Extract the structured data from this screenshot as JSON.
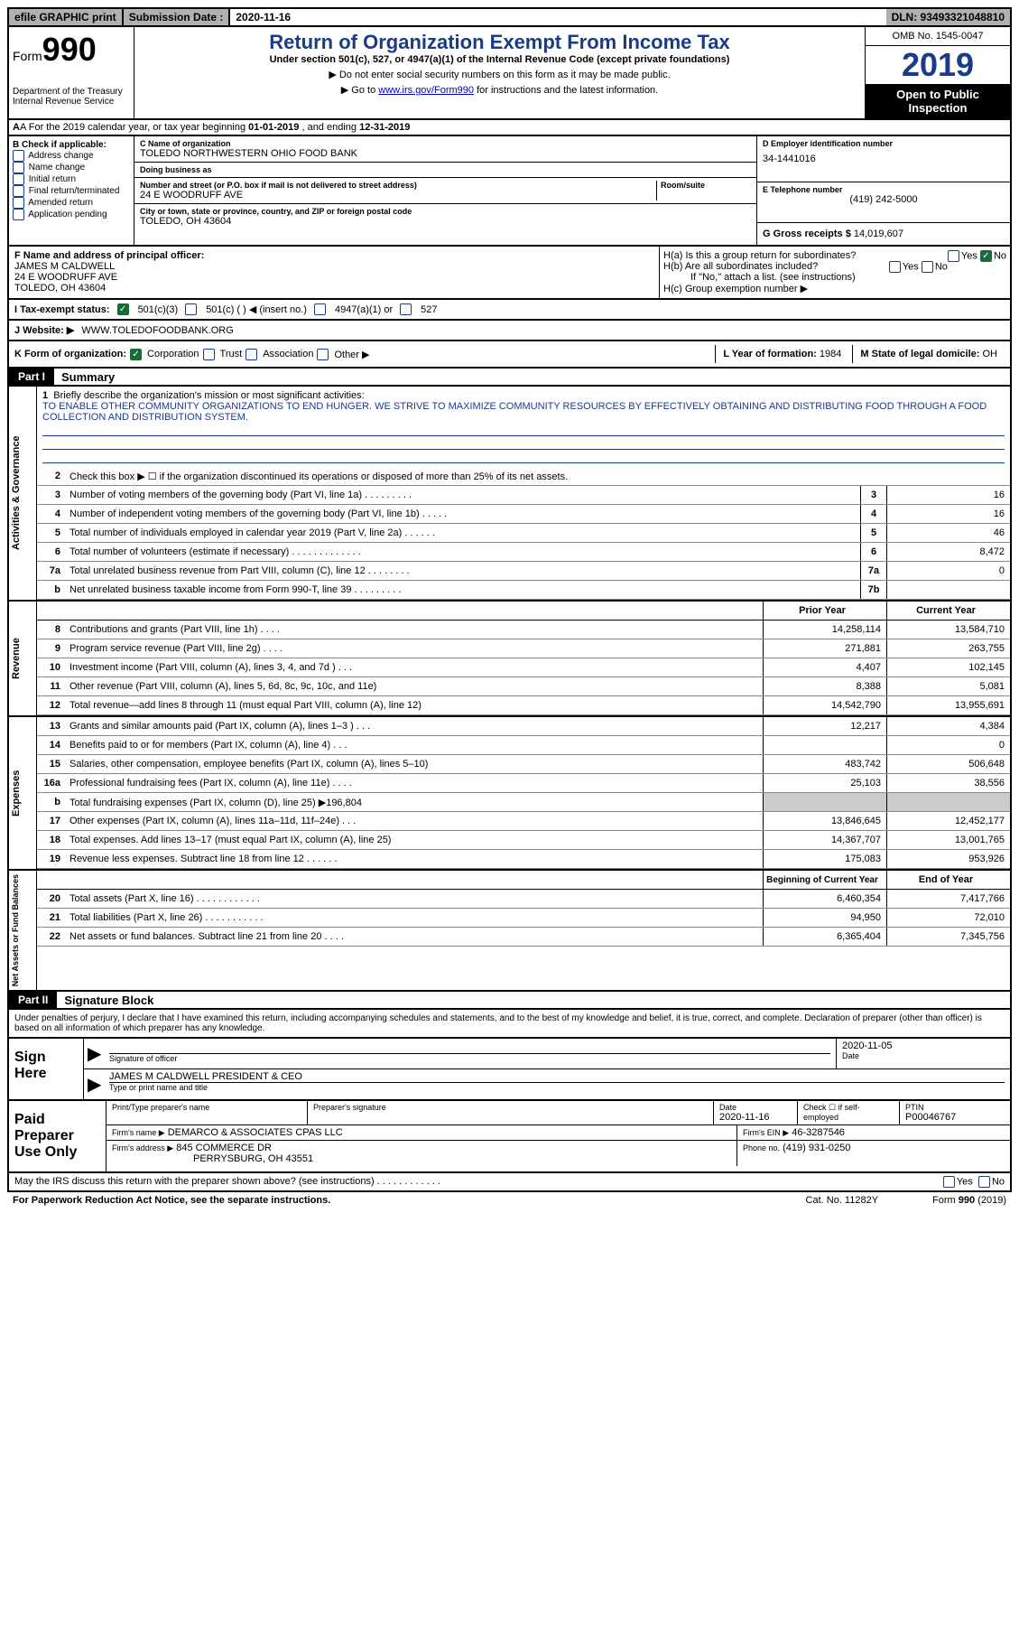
{
  "topbar": {
    "efile": "efile GRAPHIC print",
    "sub_label": "Submission Date :",
    "sub_date": "2020-11-16",
    "dln": "DLN: 93493321048810"
  },
  "header": {
    "form_label": "Form",
    "form_num": "990",
    "dept": "Department of the Treasury\nInternal Revenue Service",
    "main_title": "Return of Organization Exempt From Income Tax",
    "sub1": "Under section 501(c), 527, or 4947(a)(1) of the Internal Revenue Code (except private foundations)",
    "sub2": "▶ Do not enter social security numbers on this form as it may be made public.",
    "sub3_pre": "▶ Go to ",
    "sub3_link": "www.irs.gov/Form990",
    "sub3_post": " for instructions and the latest information.",
    "omb": "OMB No. 1545-0047",
    "year": "2019",
    "open": "Open to Public Inspection"
  },
  "sectionA": {
    "text_pre": "A For the 2019 calendar year, or tax year beginning ",
    "begin": "01-01-2019",
    "mid": " , and ending ",
    "end": "12-31-2019"
  },
  "sectionB": {
    "label": "B Check if applicable:",
    "opts": [
      "Address change",
      "Name change",
      "Initial return",
      "Final return/terminated",
      "Amended return",
      "Application pending"
    ]
  },
  "sectionC": {
    "name_label": "C Name of organization",
    "name": "TOLEDO NORTHWESTERN OHIO FOOD BANK",
    "dba_label": "Doing business as",
    "dba": "",
    "addr_label": "Number and street (or P.O. box if mail is not delivered to street address)",
    "room_label": "Room/suite",
    "addr": "24 E WOODRUFF AVE",
    "city_label": "City or town, state or province, country, and ZIP or foreign postal code",
    "city": "TOLEDO, OH  43604"
  },
  "sectionD": {
    "label": "D Employer identification number",
    "ein": "34-1441016"
  },
  "sectionE": {
    "label": "E Telephone number",
    "phone": "(419) 242-5000"
  },
  "sectionG": {
    "label": "G Gross receipts $",
    "val": "14,019,607"
  },
  "sectionF": {
    "label": "F Name and address of principal officer:",
    "name": "JAMES M CALDWELL",
    "addr1": "24 E WOODRUFF AVE",
    "addr2": "TOLEDO, OH  43604"
  },
  "sectionH": {
    "ha": "H(a)  Is this a group return for subordinates?",
    "hb": "H(b)  Are all subordinates included?",
    "hb_note": "If \"No,\" attach a list. (see instructions)",
    "hc": "H(c)  Group exemption number ▶",
    "yes": "Yes",
    "no": "No"
  },
  "taxStatus": {
    "label": "I  Tax-exempt status:",
    "o1": "501(c)(3)",
    "o2": "501(c) (   ) ◀ (insert no.)",
    "o3": "4947(a)(1) or",
    "o4": "527"
  },
  "website": {
    "label": "J  Website: ▶",
    "url": "WWW.TOLEDOFOODBANK.ORG"
  },
  "sectionK": {
    "label": "K Form of organization:",
    "o1": "Corporation",
    "o2": "Trust",
    "o3": "Association",
    "o4": "Other ▶",
    "l_label": "L Year of formation:",
    "l_val": "1984",
    "m_label": "M State of legal domicile:",
    "m_val": "OH"
  },
  "part1": {
    "tag": "Part I",
    "title": "Summary"
  },
  "mission": {
    "num": "1",
    "label": "Briefly describe the organization's mission or most significant activities:",
    "text": "TO ENABLE OTHER COMMUNITY ORGANIZATIONS TO END HUNGER. WE STRIVE TO MAXIMIZE COMMUNITY RESOURCES BY EFFECTIVELY OBTAINING AND DISTRIBUTING FOOD THROUGH A FOOD COLLECTION AND DISTRIBUTION SYSTEM."
  },
  "governance": {
    "tab": "Activities & Governance",
    "l2": "Check this box ▶ ☐ if the organization discontinued its operations or disposed of more than 25% of its net assets.",
    "lines": [
      {
        "n": "3",
        "d": "Number of voting members of the governing body (Part VI, line 1a)   .    .    .    .    .    .    .    .    .",
        "b": "3",
        "v": "16"
      },
      {
        "n": "4",
        "d": "Number of independent voting members of the governing body (Part VI, line 1b)   .    .    .    .    .",
        "b": "4",
        "v": "16"
      },
      {
        "n": "5",
        "d": "Total number of individuals employed in calendar year 2019 (Part V, line 2a)   .    .    .    .    .    .",
        "b": "5",
        "v": "46"
      },
      {
        "n": "6",
        "d": "Total number of volunteers (estimate if necessary)    .    .    .    .    .    .    .    .    .    .    .    .    .",
        "b": "6",
        "v": "8,472"
      },
      {
        "n": "7a",
        "d": "Total unrelated business revenue from Part VIII, column (C), line 12   .    .    .    .    .    .    .    .",
        "b": "7a",
        "v": "0"
      },
      {
        "n": "b",
        "d": "Net unrelated business taxable income from Form 990-T, line 39    .    .    .    .    .    .    .    .    .",
        "b": "7b",
        "v": ""
      }
    ]
  },
  "colhdr": {
    "py": "Prior Year",
    "cy": "Current Year"
  },
  "revenue": {
    "tab": "Revenue",
    "lines": [
      {
        "n": "8",
        "d": "Contributions and grants (Part VIII, line 1h)   .    .    .    .",
        "py": "14,258,114",
        "cy": "13,584,710"
      },
      {
        "n": "9",
        "d": "Program service revenue (Part VIII, line 2g)   .    .    .    .",
        "py": "271,881",
        "cy": "263,755"
      },
      {
        "n": "10",
        "d": "Investment income (Part VIII, column (A), lines 3, 4, and 7d )    .    .    .",
        "py": "4,407",
        "cy": "102,145"
      },
      {
        "n": "11",
        "d": "Other revenue (Part VIII, column (A), lines 5, 6d, 8c, 9c, 10c, and 11e)",
        "py": "8,388",
        "cy": "5,081"
      },
      {
        "n": "12",
        "d": "Total revenue—add lines 8 through 11 (must equal Part VIII, column (A), line 12)",
        "py": "14,542,790",
        "cy": "13,955,691"
      }
    ]
  },
  "expenses": {
    "tab": "Expenses",
    "lines": [
      {
        "n": "13",
        "d": "Grants and similar amounts paid (Part IX, column (A), lines 1–3 )   .    .    .",
        "py": "12,217",
        "cy": "4,384"
      },
      {
        "n": "14",
        "d": "Benefits paid to or for members (Part IX, column (A), line 4)   .    .    .",
        "py": "",
        "cy": "0"
      },
      {
        "n": "15",
        "d": "Salaries, other compensation, employee benefits (Part IX, column (A), lines 5–10)",
        "py": "483,742",
        "cy": "506,648"
      },
      {
        "n": "16a",
        "d": "Professional fundraising fees (Part IX, column (A), line 11e)   .    .    .    .",
        "py": "25,103",
        "cy": "38,556"
      },
      {
        "n": "b",
        "d": "Total fundraising expenses (Part IX, column (D), line 25) ▶196,804",
        "py": "grey",
        "cy": "grey"
      },
      {
        "n": "17",
        "d": "Other expenses (Part IX, column (A), lines 11a–11d, 11f–24e)   .    .    .",
        "py": "13,846,645",
        "cy": "12,452,177"
      },
      {
        "n": "18",
        "d": "Total expenses. Add lines 13–17 (must equal Part IX, column (A), line 25)",
        "py": "14,367,707",
        "cy": "13,001,765"
      },
      {
        "n": "19",
        "d": "Revenue less expenses. Subtract line 18 from line 12   .    .    .    .    .    .",
        "py": "175,083",
        "cy": "953,926"
      }
    ]
  },
  "colhdr2": {
    "py": "Beginning of Current Year",
    "cy": "End of Year"
  },
  "netassets": {
    "tab": "Net Assets or Fund Balances",
    "lines": [
      {
        "n": "20",
        "d": "Total assets (Part X, line 16)   .    .    .    .    .    .    .    .    .    .    .    .",
        "py": "6,460,354",
        "cy": "7,417,766"
      },
      {
        "n": "21",
        "d": "Total liabilities (Part X, line 26)   .    .    .    .    .    .    .    .    .    .    .",
        "py": "94,950",
        "cy": "72,010"
      },
      {
        "n": "22",
        "d": "Net assets or fund balances. Subtract line 21 from line 20    .    .    .    .",
        "py": "6,365,404",
        "cy": "7,345,756"
      }
    ]
  },
  "part2": {
    "tag": "Part II",
    "title": "Signature Block",
    "declare": "Under penalties of perjury, I declare that I have examined this return, including accompanying schedules and statements, and to the best of my knowledge and belief, it is true, correct, and complete. Declaration of preparer (other than officer) is based on all information of which preparer has any knowledge."
  },
  "sign": {
    "here": "Sign Here",
    "sig_officer": "Signature of officer",
    "date_label": "Date",
    "date": "2020-11-05",
    "name": "JAMES M CALDWELL PRESIDENT & CEO",
    "name_label": "Type or print name and title"
  },
  "preparer": {
    "label": "Paid Preparer Use Only",
    "print_name": "Print/Type preparer's name",
    "prep_sig": "Preparer's signature",
    "date_label": "Date",
    "date": "2020-11-16",
    "check_label": "Check ☐ if self-employed",
    "ptin_label": "PTIN",
    "ptin": "P00046767",
    "firm_name_label": "Firm's name    ▶",
    "firm_name": "DEMARCO & ASSOCIATES CPAS LLC",
    "firm_ein_label": "Firm's EIN ▶",
    "firm_ein": "46-3287546",
    "firm_addr_label": "Firm's address ▶",
    "firm_addr1": "845 COMMERCE DR",
    "firm_addr2": "PERRYSBURG, OH  43551",
    "phone_label": "Phone no.",
    "phone": "(419) 931-0250"
  },
  "footer": {
    "discuss": "May the IRS discuss this return with the preparer shown above? (see instructions)    .    .    .    .    .    .    .    .    .    .    .    .",
    "yes": "Yes",
    "no": "No",
    "paperwork": "For Paperwork Reduction Act Notice, see the separate instructions.",
    "cat": "Cat. No. 11282Y",
    "form": "Form 990 (2019)"
  }
}
